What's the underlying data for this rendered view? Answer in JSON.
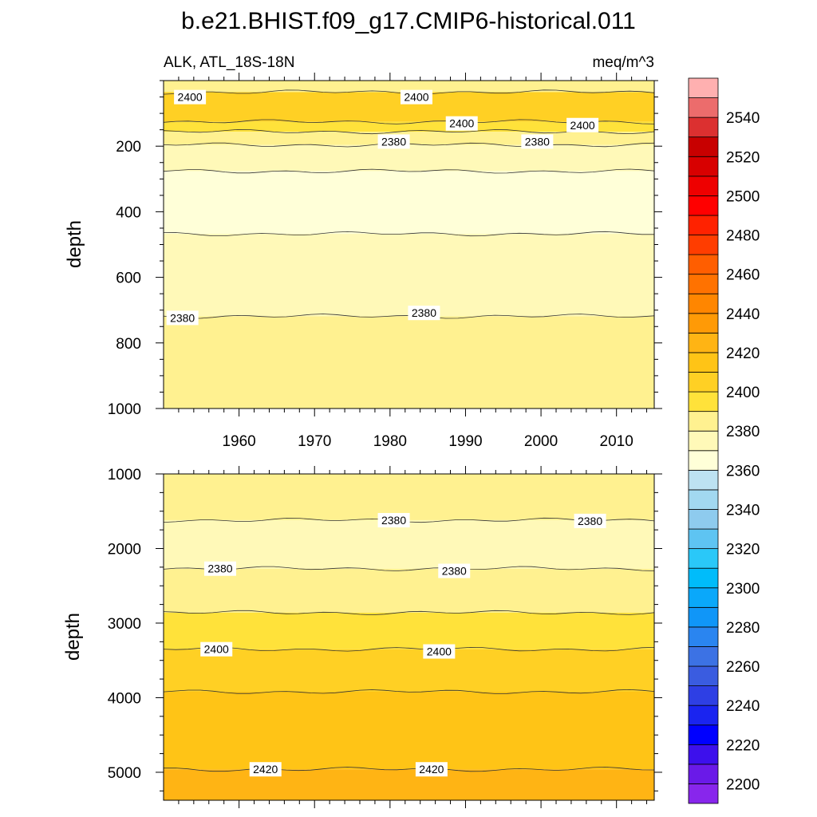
{
  "chart_data": {
    "type": "heatmap",
    "title": "b.e21.BHIST.f09_g17.CMIP6-historical.011",
    "left_subtitle": "ALK, ATL_18S-18N",
    "right_subtitle": "meq/m^3",
    "xlabel": "",
    "ylabel": "depth",
    "x_tick_labels": [
      "1960",
      "1970",
      "1980",
      "1990",
      "2000",
      "2010"
    ],
    "x_ticks": [
      1960,
      1970,
      1980,
      1990,
      2000,
      2010
    ],
    "xlim": [
      1950,
      2015
    ],
    "panels": [
      {
        "name": "upper",
        "ylim": [
          0,
          1000
        ],
        "y_reversed": true,
        "data_top_depth": 5,
        "y_ticks": [
          200,
          400,
          600,
          800,
          1000
        ],
        "y_tick_labels": [
          "200",
          "400",
          "600",
          "800",
          "1000"
        ],
        "bands": [
          {
            "from_depth": 5,
            "to_depth": 40,
            "min": 2380,
            "max": 2390
          },
          {
            "from_depth": 40,
            "to_depth": 130,
            "min": 2400,
            "max": 2410
          },
          {
            "from_depth": 130,
            "to_depth": 160,
            "min": 2390,
            "max": 2400
          },
          {
            "from_depth": 160,
            "to_depth": 200,
            "min": 2380,
            "max": 2390
          },
          {
            "from_depth": 200,
            "to_depth": 280,
            "min": 2370,
            "max": 2380
          },
          {
            "from_depth": 280,
            "to_depth": 470,
            "min": 2360,
            "max": 2370
          },
          {
            "from_depth": 470,
            "to_depth": 720,
            "min": 2370,
            "max": 2380
          },
          {
            "from_depth": 720,
            "to_depth": 1000,
            "min": 2380,
            "max": 2390
          }
        ],
        "contour_labels": [
          {
            "text": "2400",
            "x": 1953.5,
            "depth": 55
          },
          {
            "text": "2400",
            "x": 1983.5,
            "depth": 55
          },
          {
            "text": "2400",
            "x": 1989.5,
            "depth": 135
          },
          {
            "text": "2400",
            "x": 2005.5,
            "depth": 140
          },
          {
            "text": "2380",
            "x": 1980.5,
            "depth": 190
          },
          {
            "text": "2380",
            "x": 1999.5,
            "depth": 190
          },
          {
            "text": "2380",
            "x": 1952.5,
            "depth": 725
          },
          {
            "text": "2380",
            "x": 1984.5,
            "depth": 710
          }
        ]
      },
      {
        "name": "lower",
        "ylim": [
          1000,
          5375
        ],
        "y_reversed": true,
        "y_ticks": [
          1000,
          2000,
          3000,
          4000,
          5000
        ],
        "y_tick_labels": [
          "1000",
          "2000",
          "3000",
          "4000",
          "5000"
        ],
        "bands": [
          {
            "from_depth": 1000,
            "to_depth": 1620,
            "min": 2380,
            "max": 2390
          },
          {
            "from_depth": 1620,
            "to_depth": 2270,
            "min": 2370,
            "max": 2380
          },
          {
            "from_depth": 2270,
            "to_depth": 2860,
            "min": 2380,
            "max": 2390
          },
          {
            "from_depth": 2860,
            "to_depth": 3350,
            "min": 2390,
            "max": 2400
          },
          {
            "from_depth": 3350,
            "to_depth": 3920,
            "min": 2400,
            "max": 2410
          },
          {
            "from_depth": 3920,
            "to_depth": 4960,
            "min": 2410,
            "max": 2420
          },
          {
            "from_depth": 4960,
            "to_depth": 5375,
            "min": 2420,
            "max": 2430
          }
        ],
        "contour_labels": [
          {
            "text": "2380",
            "x": 1980.5,
            "depth": 1620
          },
          {
            "text": "2380",
            "x": 2006.5,
            "depth": 1630
          },
          {
            "text": "2380",
            "x": 1957.5,
            "depth": 2270
          },
          {
            "text": "2380",
            "x": 1988.5,
            "depth": 2300
          },
          {
            "text": "2400",
            "x": 1957,
            "depth": 3350
          },
          {
            "text": "2400",
            "x": 1986.5,
            "depth": 3380
          },
          {
            "text": "2420",
            "x": 1963.5,
            "depth": 4960
          },
          {
            "text": "2420",
            "x": 1985.5,
            "depth": 4960
          }
        ]
      }
    ],
    "colorbar": {
      "range": [
        2190,
        2560
      ],
      "step": 10,
      "tick_labels": [
        "2200",
        "2220",
        "2240",
        "2260",
        "2280",
        "2300",
        "2320",
        "2340",
        "2360",
        "2380",
        "2400",
        "2420",
        "2440",
        "2460",
        "2480",
        "2500",
        "2520",
        "2540"
      ],
      "colors": [
        "#8826ec",
        "#6a1ae8",
        "#3d10ec",
        "#0000ff",
        "#1a24f0",
        "#2e3fe4",
        "#3a5ce0",
        "#3c72e4",
        "#2a85f0",
        "#1096f8",
        "#0aa8fa",
        "#00bcfa",
        "#2ac8f8",
        "#5ec4f2",
        "#8ecbee",
        "#a2d8f0",
        "#bde2f2",
        "#ffffd8",
        "#fff9b8",
        "#fff190",
        "#ffe23a",
        "#ffd024",
        "#ffc416",
        "#ffb414",
        "#ff9a06",
        "#ff8600",
        "#ff7200",
        "#ff5e00",
        "#ff3d00",
        "#ff2200",
        "#ff0000",
        "#ee0000",
        "#d80000",
        "#c80000",
        "#dc3030",
        "#ec6c6c",
        "#ffb0b0"
      ]
    }
  }
}
